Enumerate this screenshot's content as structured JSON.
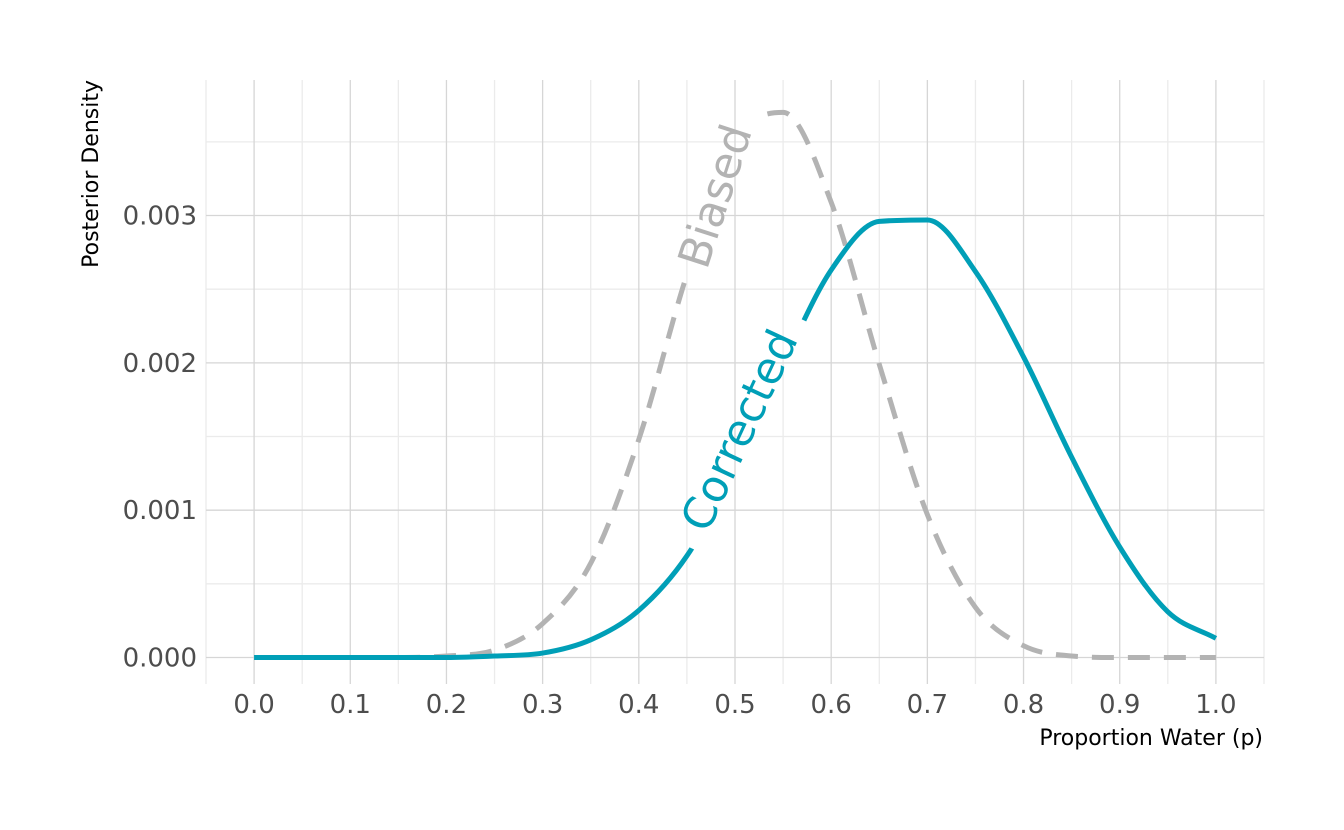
{
  "chart_data": {
    "type": "line",
    "xlabel": "Proportion Water (p)",
    "ylabel": "Posterior Density",
    "xlim": [
      -0.05,
      1.05
    ],
    "ylim": [
      -0.00018,
      0.00392
    ],
    "x_ticks": [
      0.0,
      0.1,
      0.2,
      0.3,
      0.4,
      0.5,
      0.6,
      0.7,
      0.8,
      0.9,
      1.0
    ],
    "x_tick_labels": [
      "0.0",
      "0.1",
      "0.2",
      "0.3",
      "0.4",
      "0.5",
      "0.6",
      "0.7",
      "0.8",
      "0.9",
      "1.0"
    ],
    "x_minor_ticks": [
      -0.05,
      0.05,
      0.15,
      0.25,
      0.35,
      0.45,
      0.55,
      0.65,
      0.75,
      0.85,
      0.95,
      1.05
    ],
    "y_ticks": [
      0.0,
      0.001,
      0.002,
      0.003
    ],
    "y_tick_labels": [
      "0.000",
      "0.001",
      "0.002",
      "0.003"
    ],
    "y_minor_ticks": [
      0.0005,
      0.0015,
      0.0025,
      0.0035
    ],
    "grid": true,
    "legend": "none",
    "series": [
      {
        "name": "Biased",
        "color": "#b3b3b3",
        "dashed": true,
        "label_at": [
          0.48,
          0.00313
        ],
        "label_angle": -72,
        "x": [
          0.0,
          0.05,
          0.1,
          0.15,
          0.2,
          0.25,
          0.3,
          0.35,
          0.4,
          0.45,
          0.5,
          0.55,
          0.6,
          0.65,
          0.7,
          0.75,
          0.8,
          0.85,
          0.9,
          0.95,
          1.0
        ],
        "y": [
          0.0,
          0.0,
          0.0,
          0.0,
          1e-05,
          5e-05,
          0.00023,
          0.00064,
          0.00148,
          0.0026,
          0.0035,
          0.0037,
          0.00309,
          0.00199,
          0.00097,
          0.00034,
          8e-05,
          1e-05,
          0.0,
          0.0,
          0.0
        ]
      },
      {
        "name": "Corrected",
        "color": "#009fb7",
        "dashed": false,
        "label_at": [
          0.505,
          0.00154
        ],
        "label_angle": -65,
        "x": [
          0.0,
          0.05,
          0.1,
          0.15,
          0.2,
          0.25,
          0.3,
          0.35,
          0.4,
          0.45,
          0.5,
          0.55,
          0.6,
          0.65,
          0.7,
          0.75,
          0.8,
          0.85,
          0.9,
          0.95,
          1.0
        ],
        "y": [
          0.0,
          0.0,
          0.0,
          0.0,
          0.0,
          1e-05,
          3e-05,
          0.00012,
          0.00032,
          0.00069,
          0.00128,
          0.00199,
          0.00263,
          0.00296,
          0.00297,
          0.00262,
          0.00204,
          0.00136,
          0.00075,
          0.00031,
          0.00013
        ]
      }
    ]
  }
}
